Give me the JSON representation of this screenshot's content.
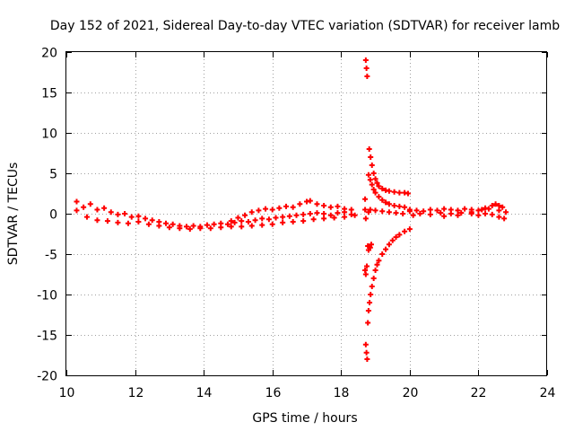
{
  "chart_data": {
    "type": "scatter",
    "title": "Day 152 of 2021, Sidereal Day-to-day VTEC variation (SDTVAR) for receiver lamb",
    "xlabel": "GPS time / hours",
    "ylabel": "SDTVAR / TECUs",
    "xlim": [
      10,
      24
    ],
    "ylim": [
      -20,
      20
    ],
    "xticks": [
      10,
      12,
      14,
      16,
      18,
      20,
      22,
      24
    ],
    "yticks": [
      -20,
      -15,
      -10,
      -5,
      0,
      5,
      10,
      15,
      20
    ],
    "xtick_labels": [
      "10",
      "12",
      "14",
      "16",
      "18",
      "20",
      "22",
      "24"
    ],
    "ytick_labels": [
      "-20",
      "-15",
      "-10",
      "-5",
      "0",
      "5",
      "10",
      "15",
      "20"
    ],
    "grid": true,
    "marker": "+",
    "series": [
      {
        "name": "SDTVAR",
        "color": "#ff0000",
        "points": [
          [
            10.3,
            1.5
          ],
          [
            10.5,
            0.8
          ],
          [
            10.7,
            1.2
          ],
          [
            10.9,
            0.5
          ],
          [
            11.1,
            0.7
          ],
          [
            11.3,
            0.2
          ],
          [
            11.5,
            -0.1
          ],
          [
            11.7,
            0.0
          ],
          [
            11.9,
            -0.4
          ],
          [
            12.1,
            -0.3
          ],
          [
            12.3,
            -0.6
          ],
          [
            12.5,
            -0.8
          ],
          [
            12.7,
            -1.0
          ],
          [
            12.9,
            -1.2
          ],
          [
            13.1,
            -1.3
          ],
          [
            13.3,
            -1.5
          ],
          [
            13.5,
            -1.6
          ],
          [
            13.7,
            -1.5
          ],
          [
            13.9,
            -1.6
          ],
          [
            14.1,
            -1.4
          ],
          [
            14.3,
            -1.3
          ],
          [
            14.5,
            -1.2
          ],
          [
            14.7,
            -1.3
          ],
          [
            14.9,
            -1.1
          ],
          [
            15.1,
            -0.9
          ],
          [
            15.3,
            -1.0
          ],
          [
            15.5,
            -0.8
          ],
          [
            15.7,
            -0.6
          ],
          [
            15.9,
            -0.7
          ],
          [
            16.1,
            -0.5
          ],
          [
            16.3,
            -0.4
          ],
          [
            16.5,
            -0.3
          ],
          [
            16.7,
            -0.2
          ],
          [
            16.9,
            -0.1
          ],
          [
            17.1,
            0.0
          ],
          [
            17.3,
            0.1
          ],
          [
            17.5,
            0.0
          ],
          [
            17.7,
            -0.2
          ],
          [
            17.9,
            0.1
          ],
          [
            18.1,
            0.2
          ],
          [
            18.3,
            -0.1
          ],
          [
            10.3,
            0.4
          ],
          [
            10.6,
            -0.4
          ],
          [
            10.9,
            -0.8
          ],
          [
            11.2,
            -0.9
          ],
          [
            11.5,
            -1.1
          ],
          [
            11.8,
            -1.2
          ],
          [
            12.1,
            -1.0
          ],
          [
            12.4,
            -1.3
          ],
          [
            12.7,
            -1.5
          ],
          [
            13.0,
            -1.7
          ],
          [
            13.3,
            -1.8
          ],
          [
            13.6,
            -1.9
          ],
          [
            13.9,
            -1.8
          ],
          [
            14.2,
            -1.8
          ],
          [
            14.5,
            -1.7
          ],
          [
            14.8,
            -1.6
          ],
          [
            15.1,
            -1.6
          ],
          [
            15.4,
            -1.5
          ],
          [
            15.7,
            -1.4
          ],
          [
            16.0,
            -1.3
          ],
          [
            16.3,
            -1.1
          ],
          [
            16.6,
            -1.0
          ],
          [
            16.9,
            -0.9
          ],
          [
            17.2,
            -0.7
          ],
          [
            17.5,
            -0.6
          ],
          [
            17.8,
            -0.5
          ],
          [
            18.1,
            -0.4
          ],
          [
            18.4,
            -0.2
          ],
          [
            14.8,
            -0.9
          ],
          [
            15.0,
            -0.5
          ],
          [
            15.2,
            -0.2
          ],
          [
            15.4,
            0.2
          ],
          [
            15.6,
            0.4
          ],
          [
            15.8,
            0.6
          ],
          [
            16.0,
            0.5
          ],
          [
            16.2,
            0.7
          ],
          [
            16.4,
            0.9
          ],
          [
            16.6,
            0.8
          ],
          [
            16.8,
            1.2
          ],
          [
            17.0,
            1.5
          ],
          [
            17.1,
            1.6
          ],
          [
            17.3,
            1.2
          ],
          [
            17.5,
            1.0
          ],
          [
            17.7,
            0.8
          ],
          [
            17.9,
            0.9
          ],
          [
            18.1,
            0.6
          ],
          [
            18.3,
            0.5
          ],
          [
            18.72,
            19.0
          ],
          [
            18.74,
            18.0
          ],
          [
            18.76,
            17.0
          ],
          [
            18.72,
            -16.2
          ],
          [
            18.74,
            -17.2
          ],
          [
            18.76,
            -18.0
          ],
          [
            18.7,
            1.8
          ],
          [
            18.7,
            0.5
          ],
          [
            18.72,
            -0.6
          ],
          [
            18.8,
            0.2
          ],
          [
            18.82,
            8.0
          ],
          [
            18.86,
            7.0
          ],
          [
            18.9,
            6.0
          ],
          [
            18.95,
            5.0
          ],
          [
            19.0,
            4.3
          ],
          [
            19.05,
            3.8
          ],
          [
            19.1,
            3.4
          ],
          [
            19.2,
            3.1
          ],
          [
            19.3,
            2.9
          ],
          [
            19.4,
            2.8
          ],
          [
            19.55,
            2.7
          ],
          [
            19.7,
            2.6
          ],
          [
            19.85,
            2.6
          ],
          [
            19.95,
            2.5
          ],
          [
            18.8,
            4.8
          ],
          [
            18.85,
            4.2
          ],
          [
            18.9,
            3.6
          ],
          [
            18.95,
            3.0
          ],
          [
            19.0,
            2.6
          ],
          [
            19.1,
            2.1
          ],
          [
            19.2,
            1.7
          ],
          [
            19.3,
            1.4
          ],
          [
            19.4,
            1.2
          ],
          [
            19.55,
            1.0
          ],
          [
            19.7,
            0.9
          ],
          [
            19.85,
            0.8
          ],
          [
            18.85,
            0.5
          ],
          [
            19.0,
            0.4
          ],
          [
            19.2,
            0.3
          ],
          [
            19.4,
            0.2
          ],
          [
            19.6,
            0.1
          ],
          [
            19.8,
            0.0
          ],
          [
            20.0,
            0.3
          ],
          [
            18.78,
            -4.0
          ],
          [
            18.8,
            -4.5
          ],
          [
            18.85,
            -4.2
          ],
          [
            18.88,
            -3.8
          ],
          [
            18.7,
            -7.0
          ],
          [
            18.72,
            -7.5
          ],
          [
            18.75,
            -6.5
          ],
          [
            18.78,
            -13.5
          ],
          [
            18.8,
            -12.0
          ],
          [
            18.83,
            -11.0
          ],
          [
            18.86,
            -10.0
          ],
          [
            18.9,
            -9.0
          ],
          [
            18.95,
            -8.0
          ],
          [
            19.0,
            -7.0
          ],
          [
            19.05,
            -6.3
          ],
          [
            19.1,
            -5.8
          ],
          [
            19.2,
            -5.0
          ],
          [
            19.3,
            -4.4
          ],
          [
            19.4,
            -3.8
          ],
          [
            19.5,
            -3.3
          ],
          [
            19.6,
            -2.9
          ],
          [
            19.7,
            -2.6
          ],
          [
            19.85,
            -2.2
          ],
          [
            20.0,
            -1.9
          ],
          [
            20.0,
            0.5
          ],
          [
            20.2,
            0.4
          ],
          [
            20.4,
            0.3
          ],
          [
            20.6,
            0.5
          ],
          [
            20.8,
            0.4
          ],
          [
            21.0,
            0.6
          ],
          [
            21.2,
            0.5
          ],
          [
            21.4,
            0.4
          ],
          [
            21.6,
            0.6
          ],
          [
            21.8,
            0.5
          ],
          [
            22.0,
            0.4
          ],
          [
            22.2,
            0.7
          ],
          [
            22.4,
            1.0
          ],
          [
            22.5,
            1.2
          ],
          [
            22.6,
            1.0
          ],
          [
            22.7,
            0.8
          ],
          [
            22.8,
            0.2
          ],
          [
            20.1,
            -0.2
          ],
          [
            20.3,
            0.0
          ],
          [
            20.6,
            -0.1
          ],
          [
            20.9,
            0.1
          ],
          [
            21.2,
            0.0
          ],
          [
            21.5,
            0.1
          ],
          [
            21.8,
            0.0
          ],
          [
            22.0,
            -0.2
          ],
          [
            22.2,
            0.0
          ],
          [
            22.4,
            -0.1
          ],
          [
            22.6,
            -0.4
          ],
          [
            22.75,
            -0.6
          ],
          [
            21.0,
            -0.3
          ],
          [
            21.4,
            -0.2
          ],
          [
            21.8,
            0.2
          ],
          [
            22.1,
            0.5
          ],
          [
            22.3,
            0.6
          ],
          [
            22.6,
            0.4
          ]
        ]
      }
    ]
  }
}
